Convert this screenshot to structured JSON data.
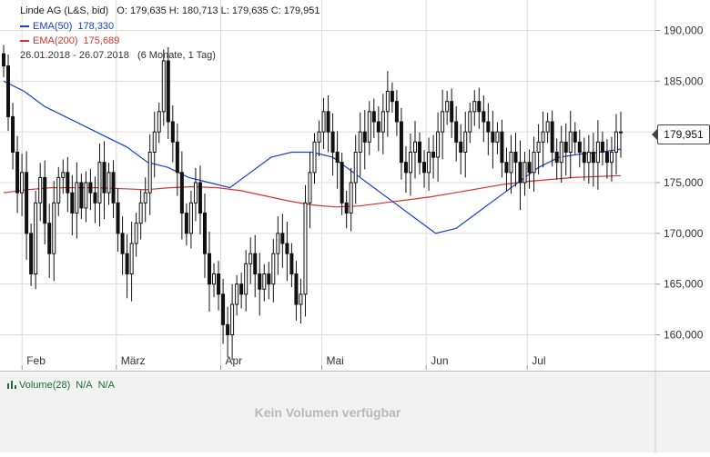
{
  "legend": {
    "instrument": "Linde AG (L&S, bid)",
    "ohlc_text": "O: 179,635  H: 180,713  L: 179,635  C: 179,951",
    "ema50_label": "EMA(50)",
    "ema50_value": "178,330",
    "ema200_label": "EMA(200)",
    "ema200_value": "175,689",
    "range_text": "26.01.2018 - 26.07.2018",
    "period_text": "(6 Monate, 1 Tag)"
  },
  "last_price_badge": "179,951",
  "volume_panel": {
    "label": "Volume(28)",
    "value1": "N/A",
    "value2": "N/A",
    "empty_text": "Kein Volumen verfügbar"
  },
  "colors": {
    "ema50": "#1a3fcf",
    "ema200": "#d6332b",
    "candle": "#111111",
    "grid": "#dcdcdc",
    "volume": "#1b6e3a"
  },
  "chart_data": {
    "type": "candlestick",
    "title": "Linde AG (L&S, bid)",
    "ylim": [
      157,
      193
    ],
    "y_ticks": [
      160,
      165,
      170,
      175,
      180,
      185,
      190
    ],
    "y_tick_labels": [
      "160,000",
      "165,000",
      "170,000",
      "175,000",
      "180,000",
      "185,000",
      "190,000"
    ],
    "x_ticks": [
      {
        "label": "Feb",
        "day": 6
      },
      {
        "label": "März",
        "day": 34
      },
      {
        "label": "Apr",
        "day": 65
      },
      {
        "label": "Mai",
        "day": 95
      },
      {
        "label": "Jun",
        "day": 126
      },
      {
        "label": "Jul",
        "day": 156
      }
    ],
    "x_domain_days": [
      0,
      181
    ],
    "grid": true,
    "legend_position": "top-left",
    "close": [
      186.5,
      181.5,
      178.0,
      174.0,
      176.0,
      170.0,
      166.0,
      173.0,
      175.5,
      171.0,
      168.0,
      173.0,
      175.5,
      176.0,
      174.0,
      172.0,
      175.0,
      172.5,
      175.0,
      174.0,
      173.0,
      177.0,
      174.0,
      176.0,
      173.0,
      170.0,
      168.0,
      166.0,
      169.0,
      171.0,
      173.0,
      174.0,
      178.0,
      180.0,
      182.0,
      187.0,
      181.0,
      179.0,
      176.0,
      172.0,
      170.0,
      173.0,
      175.0,
      172.0,
      168.0,
      165.0,
      166.0,
      164.0,
      161.0,
      160.0,
      163.0,
      165.0,
      164.0,
      167.0,
      168.0,
      166.0,
      164.5,
      166.0,
      165.0,
      168.0,
      170.0,
      169.0,
      168.0,
      166.0,
      163.0,
      164.0,
      173.0,
      176.0,
      179.0,
      180.0,
      182.0,
      180.0,
      178.0,
      177.0,
      173.0,
      172.0,
      175.0,
      178.0,
      180.0,
      179.0,
      182.0,
      181.0,
      180.0,
      182.0,
      184.0,
      183.0,
      181.0,
      177.0,
      176.0,
      178.0,
      179.0,
      177.0,
      176.0,
      178.0,
      177.5,
      180.0,
      182.0,
      183.0,
      181.0,
      179.0,
      178.0,
      180.0,
      182.0,
      183.0,
      182.0,
      181.0,
      180.0,
      179.0,
      180.0,
      177.0,
      176.0,
      178.0,
      177.0,
      175.0,
      177.0,
      176.0,
      178.0,
      179.0,
      180.0,
      181.0,
      178.0,
      177.0,
      179.0,
      178.0,
      180.0,
      179.0,
      178.0,
      177.0,
      178.0,
      177.0,
      179.0,
      178.0,
      177.0,
      178.0,
      180.0,
      179.951
    ],
    "ema50": [
      185.0,
      184.0,
      182.5,
      181.5,
      180.5,
      179.5,
      178.5,
      177.0,
      176.5,
      175.5,
      175.0,
      174.5,
      176.0,
      177.5,
      178.0,
      178.0,
      177.5,
      176.0,
      174.5,
      173.0,
      171.5,
      170.0,
      170.5,
      172.0,
      173.5,
      175.0,
      176.5,
      177.5,
      177.8,
      178.0,
      178.3
    ],
    "ema200": [
      174.0,
      174.3,
      174.5,
      174.5,
      174.5,
      174.4,
      174.3,
      174.5,
      174.6,
      174.5,
      174.2,
      173.7,
      173.2,
      172.8,
      172.6,
      172.7,
      173.0,
      173.3,
      173.6,
      174.0,
      174.4,
      174.8,
      175.1,
      175.3,
      175.5,
      175.6,
      175.689
    ]
  }
}
